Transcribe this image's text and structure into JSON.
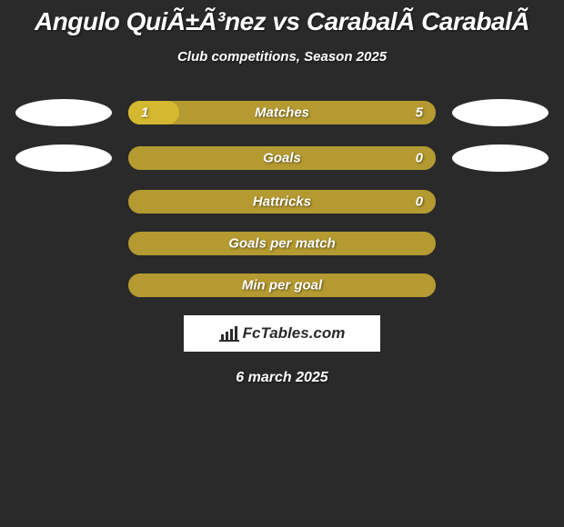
{
  "background_color": "#2a2a2a",
  "header": {
    "title": "Angulo QuiÃ±Ã³nez vs CarabalÃ­ CarabalÃ­",
    "subtitle": "Club competitions, Season 2025",
    "title_color": "#ffffff",
    "title_fontsize": 28,
    "subtitle_fontsize": 15
  },
  "bar_style": {
    "border_radius": 13,
    "height": 26,
    "fill_color": "#d4b82f",
    "outline_color": "#b49a30",
    "label_color": "#ffffff",
    "value_color": "#ffffff"
  },
  "team_markers": {
    "left": {
      "color": "#ffffff",
      "visible_on_rows": [
        0,
        1
      ]
    },
    "right": {
      "color": "#ffffff",
      "visible_on_rows": [
        0,
        1
      ]
    }
  },
  "stats": [
    {
      "label": "Matches",
      "left_value": "1",
      "right_value": "5",
      "left_fill_pct": 16.7,
      "show_values": true
    },
    {
      "label": "Goals",
      "left_value": "",
      "right_value": "0",
      "left_fill_pct": 0,
      "show_values": true
    },
    {
      "label": "Hattricks",
      "left_value": "",
      "right_value": "0",
      "left_fill_pct": 0,
      "show_values": true
    },
    {
      "label": "Goals per match",
      "left_value": "",
      "right_value": "",
      "left_fill_pct": 0,
      "show_values": false
    },
    {
      "label": "Min per goal",
      "left_value": "",
      "right_value": "",
      "left_fill_pct": 0,
      "show_values": false
    }
  ],
  "branding": {
    "text": "FcTables.com",
    "bg_color": "#ffffff",
    "text_color": "#2b2b2b",
    "icon_color": "#2b2b2b"
  },
  "date": "6 march 2025"
}
